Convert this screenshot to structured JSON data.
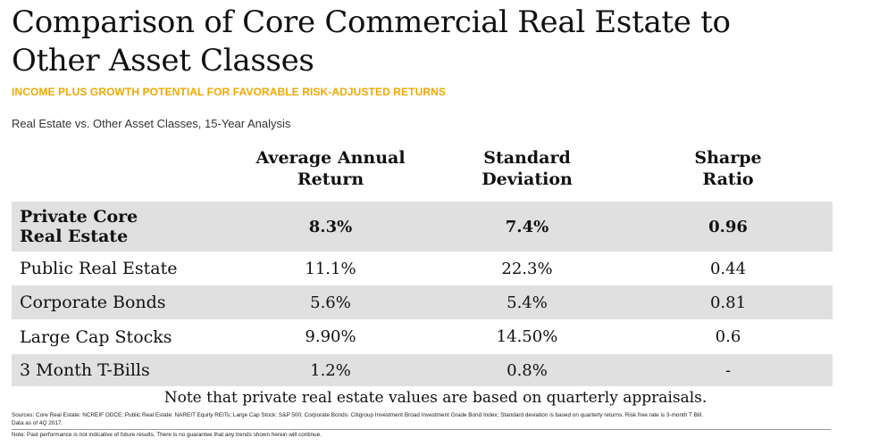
{
  "header": {
    "title": "Comparison of Core Commercial Real Estate to Other Asset Classes",
    "subtitle": "INCOME PLUS GROWTH POTENTIAL FOR FAVORABLE RISK-ADJUSTED RETURNS",
    "analysis_label": "Real Estate vs. Other Asset Classes, 15-Year Analysis"
  },
  "colors": {
    "subtitle": "#f0a800",
    "shade": "#e0e0e0"
  },
  "table": {
    "columns": [
      {
        "line1": "Average Annual",
        "line2": "Return"
      },
      {
        "line1": "Standard",
        "line2": "Deviation"
      },
      {
        "line1": "Sharpe",
        "line2": "Ratio"
      }
    ],
    "rows": [
      {
        "label_line1": "Private Core",
        "label_line2": "Real Estate",
        "return": "8.3%",
        "std_dev": "7.4%",
        "sharpe": "0.96"
      },
      {
        "label": "Public Real Estate",
        "return": "11.1%",
        "std_dev": "22.3%",
        "sharpe": "0.44"
      },
      {
        "label": "Corporate Bonds",
        "return": "5.6%",
        "std_dev": "5.4%",
        "sharpe": "0.81"
      },
      {
        "label": "Large Cap Stocks",
        "return": "9.90%",
        "std_dev": "14.50%",
        "sharpe": "0.6"
      },
      {
        "label": "3 Month T-Bills",
        "return": "1.2%",
        "std_dev": "0.8%",
        "sharpe": "-"
      }
    ]
  },
  "note": "Note that private real estate values are based on quarterly appraisals.",
  "footnotes": {
    "sources": "Sources: Core Real Estate: NCREIF ODCE; Public Real Estate: NAREIT Equity REITs; Large Cap Stock: S&P 500; Corporate Bonds: Citigroup Investment Broad Investment Grade Bond Index; Standard deviation is based on quarterly returns. Risk free rate is 3-month T Bill.",
    "data_as_of": "Data as of 4Q 2017.",
    "disclaimer": "Note: Past performance is not indicative of future results. There is no guarantee that any trends shown herein will continue."
  }
}
